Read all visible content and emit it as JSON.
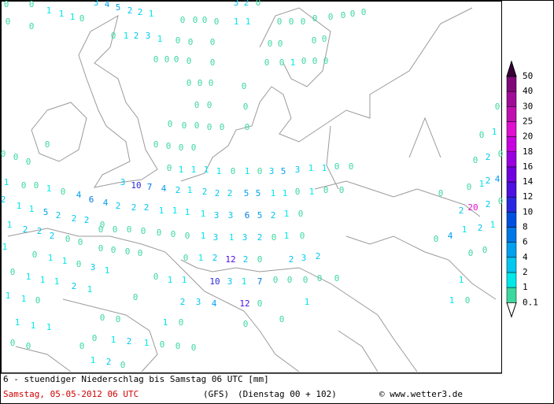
{
  "map": {
    "rows": [
      [
        0,
        0,
        1,
        1,
        1,
        0,
        3,
        4,
        5,
        2,
        2,
        1,
        3,
        2,
        0
      ],
      [
        0,
        0,
        0,
        0,
        0,
        0,
        1,
        1,
        0,
        0,
        0,
        0,
        0,
        0,
        0,
        0
      ],
      [
        0,
        1,
        2,
        3,
        1,
        0,
        0,
        0,
        0,
        0,
        0,
        0
      ],
      [
        0,
        0,
        0,
        0,
        0,
        0,
        0,
        1,
        0,
        0,
        0
      ],
      [
        0,
        0,
        0,
        0,
        0,
        0,
        0,
        0
      ],
      [
        0,
        0,
        0,
        0,
        0,
        0,
        0,
        1
      ],
      [
        0,
        0,
        0,
        0,
        0,
        0,
        2,
        0,
        0,
        0,
        0
      ],
      [
        0,
        1,
        1,
        1,
        1,
        0,
        1,
        0,
        3,
        5,
        3,
        1,
        1,
        0,
        0,
        1,
        2,
        4,
        0
      ],
      [
        1,
        0,
        0,
        1,
        0,
        3,
        10,
        7,
        4,
        2,
        1,
        2,
        2,
        2,
        5,
        5,
        1,
        1,
        0,
        1,
        0,
        0,
        0
      ],
      [
        4,
        6,
        4,
        2,
        2,
        2
      ],
      [
        2,
        1,
        1,
        5,
        2,
        2,
        2,
        0
      ],
      [
        1,
        1,
        1,
        1,
        3,
        3,
        6,
        5,
        2,
        1,
        0,
        2,
        20,
        2,
        0
      ],
      [
        1,
        2,
        2,
        2,
        0,
        0,
        0,
        0,
        0,
        0,
        0,
        0,
        0,
        1,
        3,
        1,
        3,
        2,
        0,
        1,
        0,
        0,
        4,
        1,
        2,
        1
      ],
      [
        1,
        0,
        1,
        1,
        0,
        3,
        1,
        0,
        0,
        0,
        0
      ],
      [
        0,
        1,
        2,
        12,
        2,
        0,
        2,
        3,
        2,
        0,
        0
      ],
      [
        0,
        1,
        1,
        1,
        2,
        1,
        0,
        1,
        1,
        10,
        3,
        1,
        7,
        0,
        0,
        0,
        0,
        0,
        1
      ],
      [
        1,
        1,
        0,
        0,
        2,
        3,
        4,
        12,
        0,
        1,
        1,
        0
      ],
      [
        1,
        1,
        1,
        0,
        0,
        1,
        0,
        0,
        0
      ],
      [
        0,
        0,
        0,
        0,
        1,
        2,
        1,
        0,
        0,
        0,
        1,
        2,
        0
      ]
    ]
  },
  "legend": {
    "labels": [
      0.1,
      1,
      2,
      4,
      6,
      8,
      10,
      12,
      14,
      16,
      18,
      20,
      25,
      30,
      40,
      50
    ],
    "colors": [
      "#ffffff",
      "#3cd8a0",
      "#00e8e8",
      "#00c8f0",
      "#00a0f0",
      "#0078e8",
      "#0050e0",
      "#2828e0",
      "#4c10e0",
      "#7000e0",
      "#9800e0",
      "#c800e0",
      "#e010d0",
      "#c010b0",
      "#a00c98",
      "#800878",
      "#3a003a"
    ]
  },
  "footer": {
    "caption": "6 - stuendiger Niederschlag bis Samstag 06 UTC [mm]",
    "date": "Samstag, 05-05-2012  06 UTC",
    "model": "(GFS)",
    "run": "(Dienstag 00 + 102)",
    "source": "© www.wetter3.de"
  }
}
